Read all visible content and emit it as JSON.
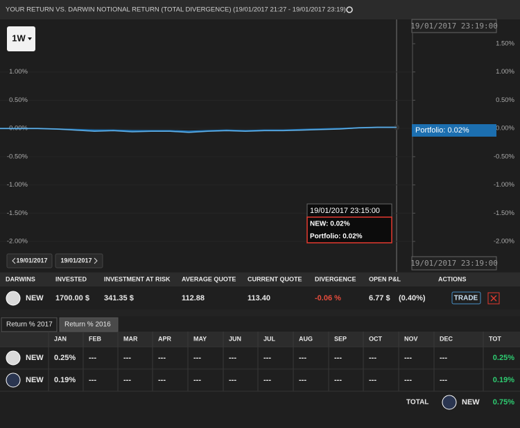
{
  "header": {
    "title": "YOUR RETURN VS. DARWIN NOTIONAL RETURN (TOTAL DIVERGENCE) (19/01/2017 21:27 - 19/01/2017 23:19)"
  },
  "chart": {
    "type": "line",
    "range_button": "1W",
    "nav": [
      "19/01/2017",
      "19/01/2017"
    ],
    "ylim": [
      -2.54,
      1.93
    ],
    "left_ticks": [
      {
        "value": 1,
        "label": "1.00%"
      },
      {
        "value": 0.5,
        "label": "0.50%"
      },
      {
        "value": 0,
        "label": "0.00%"
      },
      {
        "value": -0.5,
        "label": "-0.50%"
      },
      {
        "value": -1,
        "label": "-1.00%"
      },
      {
        "value": -1.5,
        "label": "-1.50%"
      },
      {
        "value": -2,
        "label": "-2.00%"
      }
    ],
    "right_ticks": [
      {
        "value": 1.5,
        "label": "1.50%"
      },
      {
        "value": 1,
        "label": "1.00%"
      },
      {
        "value": 0.5,
        "label": "0.50%"
      },
      {
        "value": 0,
        "label": "0.00%"
      },
      {
        "value": -0.5,
        "label": "-0.50%"
      },
      {
        "value": -1,
        "label": "-1.00%"
      },
      {
        "value": -1.5,
        "label": "-1.50%"
      },
      {
        "value": -2,
        "label": "-2.00%"
      }
    ],
    "series": [
      {
        "color": "#1c6fb0",
        "values": [
          0,
          0,
          0,
          -0.01,
          -0.02,
          -0.03,
          -0.03,
          -0.04,
          -0.04,
          -0.04,
          -0.05,
          -0.04,
          -0.03,
          -0.04,
          -0.03,
          -0.03,
          -0.02,
          -0.01,
          0,
          0.01,
          0.02,
          0.02
        ]
      },
      {
        "color": "#62b0e6",
        "values": [
          0,
          0,
          0,
          -0.01,
          -0.03,
          -0.05,
          -0.04,
          -0.06,
          -0.05,
          -0.05,
          -0.07,
          -0.05,
          -0.04,
          -0.05,
          -0.04,
          -0.04,
          -0.03,
          -0.02,
          -0.01,
          0.01,
          0.02,
          0.02
        ]
      }
    ],
    "cursor_time": "19/01/2017 23:19:00",
    "flag": "Portfolio: 0.02%",
    "tooltip": {
      "time": "19/01/2017 23:15:00",
      "lines": [
        "NEW: 0.02%",
        "Portfolio: 0.02%"
      ]
    }
  },
  "positions": {
    "headers": [
      "DARWINS",
      "INVESTED",
      "INVESTMENT AT RISK",
      "AVERAGE QUOTE",
      "CURRENT QUOTE",
      "DIVERGENCE",
      "OPEN P&L",
      "ACTIONS"
    ],
    "row": [
      "NEW",
      "1700.00 $",
      "341.35 $",
      "112.88",
      "113.40",
      "-0.06 %",
      "6.77 $",
      "(0.40%)",
      "TRADE"
    ]
  },
  "returns": {
    "tabs": [
      "Return % 2017",
      "Return % 2016"
    ],
    "headers": [
      "JAN",
      "FEB",
      "MAR",
      "APR",
      "MAY",
      "JUN",
      "JUL",
      "AUG",
      "SEP",
      "OCT",
      "NOV",
      "DEC",
      "TOT"
    ],
    "rows": [
      {
        "name": "NEW",
        "cells": [
          "0.25%",
          "---",
          "---",
          "---",
          "---",
          "---",
          "---",
          "---",
          "---",
          "---",
          "---",
          "---",
          "0.25%"
        ]
      },
      {
        "name": "NEW",
        "cells": [
          "0.19%",
          "---",
          "---",
          "---",
          "---",
          "---",
          "---",
          "---",
          "---",
          "---",
          "---",
          "---",
          "0.19%"
        ]
      }
    ],
    "total": {
      "label": "TOTAL",
      "name": "NEW",
      "value": "0.75%"
    }
  }
}
